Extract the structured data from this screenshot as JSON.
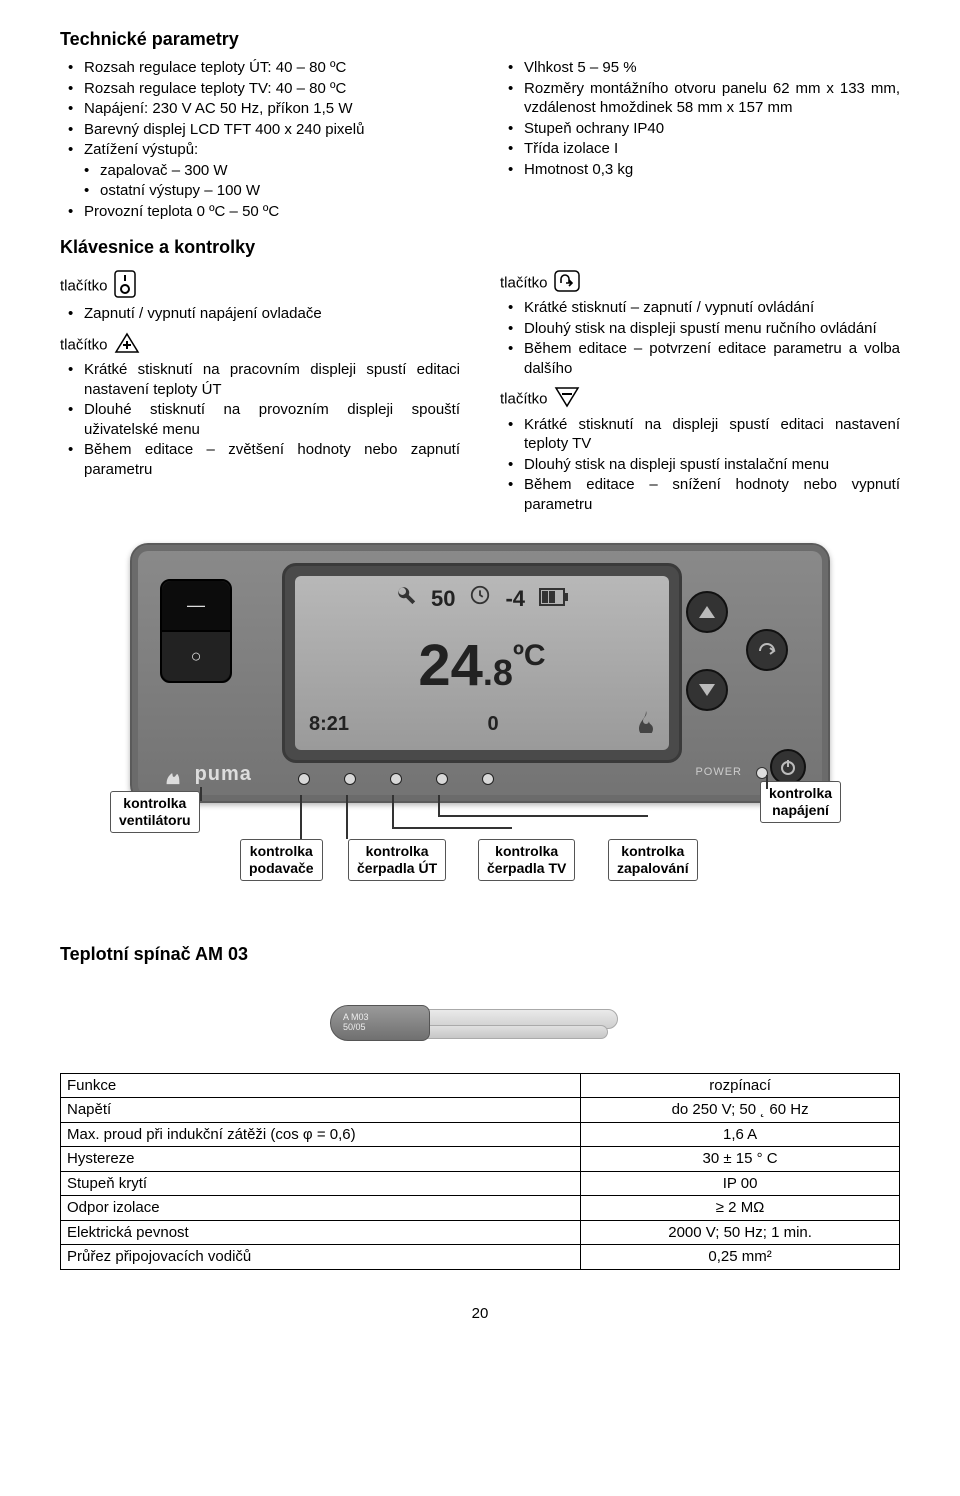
{
  "sections": {
    "tech_params_title": "Technické parametry",
    "keys_title": "Klávesnice a kontrolky",
    "switch_title": "Teplotní spínač AM 03"
  },
  "left_params": [
    "Rozsah regulace teploty ÚT: 40 – 80 ºC",
    "Rozsah regulace teploty TV: 40 – 80 ºC",
    "Napájení: 230 V AC 50 Hz, příkon 1,5 W",
    "Barevný displej LCD TFT 400 x 240 pixelů",
    "Zatížení výstupů:"
  ],
  "left_params_sub": [
    "zapalovač – 300 W",
    "ostatní výstupy – 100 W"
  ],
  "left_params_tail": [
    "Provozní teplota 0 ºC – 50 ºC"
  ],
  "right_params": [
    "Vlhkost 5 – 95 %",
    "Rozměry montážního otvoru panelu 62 mm x 133 mm, vzdálenost hmoždinek 58 mm x 157 mm",
    "Stupeň ochrany IP40",
    "Třída izolace I",
    "Hmotnost 0,3 kg"
  ],
  "btn_word": "tlačítko",
  "btn_io": [
    "Zapnutí / vypnutí napájení ovladače"
  ],
  "btn_plus": [
    "Krátké stisknutí na pracovním displeji spustí editaci nastavení teploty ÚT",
    "Dlouhé stisknutí na provozním displeji spouští uživatelské menu",
    "Během editace – zvětšení hodnoty nebo zapnutí parametru"
  ],
  "btn_ok": [
    "Krátké stisknutí – zapnutí / vypnutí ovládání",
    "Dlouhý stisk na displeji spustí menu ručního ovládání",
    "Během editace – potvrzení editace parametru a volba dalšího"
  ],
  "btn_minus": [
    "Krátké stisknutí na displeji spustí editaci nastavení teploty TV",
    "Dlouhý stisk na displeji spustí instalační menu",
    "Během editace – snížení hodnoty nebo vypnutí parametru"
  ],
  "device": {
    "brand": "puma",
    "power_label": "POWER",
    "top_wrench_val": "50",
    "top_clock_val": "-4",
    "main_temp_int": "24",
    "main_temp_dec": ".8",
    "main_temp_unit": "ºC",
    "bottom_time": "8:21",
    "bottom_zero": "0",
    "calls": {
      "fan": "kontrolka\nventilátoru",
      "feeder": "kontrolka\npodavače",
      "pump_ut": "kontrolka\nčerpadla ÚT",
      "pump_tv": "kontrolka\nčerpadla TV",
      "ignition": "kontrolka\nzapalování",
      "power": "kontrolka\nnapájení"
    }
  },
  "probe": {
    "line1": "A M03",
    "line2": "50/05"
  },
  "table": {
    "rows": [
      [
        "Funkce",
        "rozpínací"
      ],
      [
        "Napětí",
        "do 250 V; 50 ˛ 60 Hz"
      ],
      [
        "Max. proud při indukční zátěži (cos φ = 0,6)",
        "1,6 A"
      ],
      [
        "Hystereze",
        "30 ± 15 ° C"
      ],
      [
        "Stupeň krytí",
        "IP 00"
      ],
      [
        "Odpor izolace",
        "≥ 2 MΩ"
      ],
      [
        "Elektrická pevnost",
        "2000 V; 50 Hz; 1 min."
      ],
      [
        "Průřez připojovacích vodičů",
        "0,25 mm²"
      ]
    ]
  },
  "page_number": "20"
}
